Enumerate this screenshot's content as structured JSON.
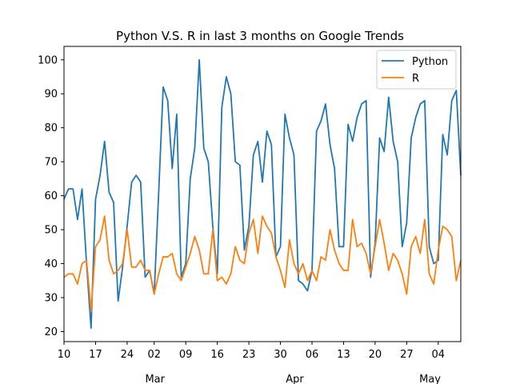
{
  "chart_data": {
    "type": "line",
    "title": "Python V.S. R in last 3 months on Google Trends",
    "xlabel": "",
    "ylabel": "",
    "ylim": [
      17.05,
      103.95
    ],
    "yticks": [
      20,
      30,
      40,
      50,
      60,
      70,
      80,
      90,
      100
    ],
    "x_start_day": 10,
    "x_end_day": 98,
    "x_ticks": [
      {
        "day": 10,
        "label": "10"
      },
      {
        "day": 17,
        "label": "17"
      },
      {
        "day": 24,
        "label": "24"
      },
      {
        "day": 30,
        "label": "02"
      },
      {
        "day": 37,
        "label": "09"
      },
      {
        "day": 44,
        "label": "16"
      },
      {
        "day": 51,
        "label": "23"
      },
      {
        "day": 58,
        "label": "30"
      },
      {
        "day": 65,
        "label": "06"
      },
      {
        "day": 72,
        "label": "13"
      },
      {
        "day": 79,
        "label": "20"
      },
      {
        "day": 86,
        "label": "27"
      },
      {
        "day": 93,
        "label": "04"
      }
    ],
    "month_labels": [
      {
        "day": 30,
        "label": "Mar"
      },
      {
        "day": 61,
        "label": "Apr"
      },
      {
        "day": 91,
        "label": "May"
      }
    ],
    "legend": "top-right",
    "grid": false,
    "series": [
      {
        "name": "Python",
        "color": "#1f77b4",
        "values": [
          59,
          62,
          62,
          53,
          62,
          40,
          21,
          59,
          66,
          76,
          61,
          58,
          29,
          39,
          51,
          64,
          66,
          64,
          36,
          38,
          31,
          61,
          92,
          88,
          68,
          84,
          36,
          40,
          65,
          74,
          100,
          74,
          70,
          51,
          37,
          86,
          95,
          90,
          70,
          69,
          44,
          51,
          72,
          76,
          64,
          79,
          75,
          42,
          45,
          84,
          77,
          72,
          35,
          34,
          32,
          38,
          79,
          82,
          87,
          75,
          68,
          45,
          45,
          81,
          76,
          83,
          87,
          88,
          36,
          46,
          77,
          73,
          89,
          76,
          70,
          45,
          52,
          77,
          83,
          87,
          88,
          45,
          40,
          41,
          78,
          72,
          88,
          91,
          66
        ]
      },
      {
        "name": "R",
        "color": "#ff7f0e",
        "values": [
          36,
          37,
          37,
          34,
          40,
          41,
          26,
          45,
          47,
          54,
          41,
          37,
          38,
          40,
          50,
          39,
          39,
          41,
          38,
          38,
          31,
          37,
          42,
          42,
          43,
          37,
          35,
          39,
          43,
          48,
          44,
          37,
          37,
          50,
          35,
          36,
          34,
          37,
          45,
          41,
          40,
          49,
          53,
          43,
          54,
          51,
          49,
          42,
          38,
          33,
          47,
          40,
          37,
          40,
          35,
          38,
          35,
          42,
          41,
          50,
          44,
          40,
          38,
          38,
          53,
          45,
          46,
          43,
          37,
          45,
          53,
          46,
          38,
          43,
          41,
          37,
          31,
          45,
          48,
          43,
          53,
          37,
          34,
          44,
          51,
          50,
          48,
          35,
          41
        ]
      }
    ]
  }
}
